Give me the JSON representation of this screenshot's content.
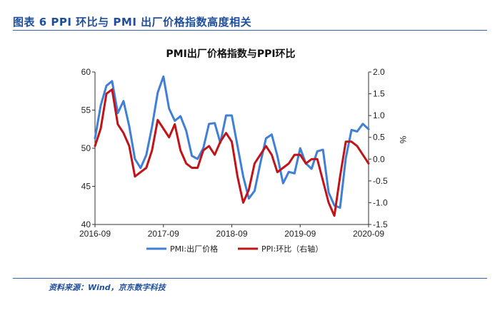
{
  "header": {
    "caption": "图表 6 PPI 环比与 PMI 出厂价格指数高度相关"
  },
  "footer": {
    "source": "资料来源：Wind，京东数字科技"
  },
  "chart_data": {
    "type": "line",
    "title": "PMI出厂价格指数与PPI环比",
    "xlabel": "",
    "ylabel_left": "",
    "ylabel_right": "%",
    "ylim_left": [
      40,
      60
    ],
    "yticks_left": [
      "40",
      "45",
      "50",
      "55",
      "60"
    ],
    "ylim_right": [
      -1.5,
      2.0
    ],
    "yticks_right": [
      "-1.5",
      "-1.0",
      "-0.5",
      "0.0",
      "0.5",
      "1.0",
      "1.5",
      "2.0"
    ],
    "x_ticks": [
      "2016-09",
      "2017-09",
      "2018-09",
      "2019-09",
      "2020-09"
    ],
    "x": [
      "2016-09",
      "2016-10",
      "2016-11",
      "2016-12",
      "2017-01",
      "2017-02",
      "2017-03",
      "2017-04",
      "2017-05",
      "2017-06",
      "2017-07",
      "2017-08",
      "2017-09",
      "2017-10",
      "2017-11",
      "2017-12",
      "2018-01",
      "2018-02",
      "2018-03",
      "2018-04",
      "2018-05",
      "2018-06",
      "2018-07",
      "2018-08",
      "2018-09",
      "2018-10",
      "2018-11",
      "2018-12",
      "2019-01",
      "2019-02",
      "2019-03",
      "2019-04",
      "2019-05",
      "2019-06",
      "2019-07",
      "2019-08",
      "2019-09",
      "2019-10",
      "2019-11",
      "2019-12",
      "2020-01",
      "2020-02",
      "2020-03",
      "2020-04",
      "2020-05",
      "2020-06",
      "2020-07",
      "2020-08",
      "2020-09"
    ],
    "legend_position": "bottom",
    "series": [
      {
        "name": "PMI:出厂价格",
        "axis": "left",
        "color": "#3f7fd8",
        "values": [
          51.3,
          55.6,
          58.2,
          58.8,
          54.6,
          56.2,
          52.9,
          48.6,
          47.4,
          49.1,
          52.8,
          57.3,
          59.4,
          55.2,
          53.6,
          54.2,
          52.3,
          49.0,
          48.6,
          50.0,
          53.2,
          53.3,
          50.7,
          54.3,
          54.3,
          50.3,
          46.3,
          43.4,
          44.4,
          48.0,
          51.3,
          51.8,
          49.0,
          45.4,
          46.9,
          46.7,
          50.0,
          48.0,
          47.3,
          49.6,
          49.8,
          44.2,
          42.5,
          42.2,
          48.7,
          52.4,
          52.2,
          53.2,
          52.5
        ]
      },
      {
        "name": "PPI:环比（右轴）",
        "axis": "right",
        "color": "#c01418",
        "values": [
          0.3,
          0.7,
          1.5,
          1.6,
          0.8,
          0.6,
          0.3,
          -0.4,
          -0.3,
          -0.2,
          0.2,
          0.9,
          0.7,
          0.5,
          0.8,
          0.2,
          -0.1,
          -0.2,
          -0.2,
          0.2,
          0.3,
          0.1,
          0.4,
          0.6,
          0.4,
          -0.4,
          -1.0,
          -0.7,
          -0.1,
          0.1,
          0.3,
          0.1,
          -0.3,
          -0.2,
          -0.1,
          0.1,
          0.1,
          -0.1,
          0.0,
          0.0,
          -0.5,
          -1.0,
          -1.3,
          -0.4,
          0.4,
          0.4,
          0.3,
          0.1,
          -0.1
        ]
      }
    ]
  }
}
